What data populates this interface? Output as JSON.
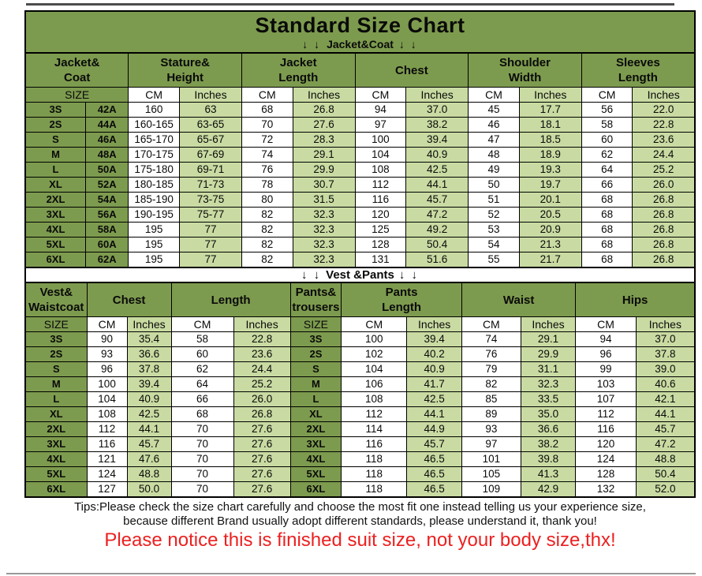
{
  "title": "Standard Size Chart",
  "arrows": "↓ ↓",
  "sections": {
    "jacket": "Jacket&Coat",
    "vest": "Vest &Pants"
  },
  "colors": {
    "band_green": "#7d9b4e",
    "pale_green": "#c9dba2",
    "notice_red": "#ec2020"
  },
  "footer": {
    "tip_line1": "Tips:Please check the size chart carefully and choose the most fit one instead telling us your experience size,",
    "tip_line2": "because different Brand usually adopt different standards, please understand it, thank you!",
    "notice": "Please notice this is finished suit size, not your body size,thx!"
  },
  "chart_data": [
    {
      "type": "table",
      "name": "Jacket&Coat",
      "size_header": "SIZE",
      "unit_headers": [
        "CM",
        "Inches"
      ],
      "column_groups": [
        {
          "label": "Jacket&\nCoat",
          "span": 2,
          "size_group": true
        },
        {
          "label": "Stature&\nHeight",
          "span": 2
        },
        {
          "label": "Jacket\nLength",
          "span": 2
        },
        {
          "label": "Chest",
          "span": 2
        },
        {
          "label": "Shoulder\nWidth",
          "span": 2
        },
        {
          "label": "Sleeves\nLength",
          "span": 2
        }
      ],
      "col_classes": [
        "size",
        "size",
        "cm",
        "in",
        "cm",
        "in",
        "cm",
        "in",
        "cm",
        "in",
        "cm",
        "in"
      ],
      "rows": [
        [
          "3S",
          "42A",
          "160",
          "63",
          "68",
          "26.8",
          "94",
          "37.0",
          "45",
          "17.7",
          "56",
          "22.0"
        ],
        [
          "2S",
          "44A",
          "160-165",
          "63-65",
          "70",
          "27.6",
          "97",
          "38.2",
          "46",
          "18.1",
          "58",
          "22.8"
        ],
        [
          "S",
          "46A",
          "165-170",
          "65-67",
          "72",
          "28.3",
          "100",
          "39.4",
          "47",
          "18.5",
          "60",
          "23.6"
        ],
        [
          "M",
          "48A",
          "170-175",
          "67-69",
          "74",
          "29.1",
          "104",
          "40.9",
          "48",
          "18.9",
          "62",
          "24.4"
        ],
        [
          "L",
          "50A",
          "175-180",
          "69-71",
          "76",
          "29.9",
          "108",
          "42.5",
          "49",
          "19.3",
          "64",
          "25.2"
        ],
        [
          "XL",
          "52A",
          "180-185",
          "71-73",
          "78",
          "30.7",
          "112",
          "44.1",
          "50",
          "19.7",
          "66",
          "26.0"
        ],
        [
          "2XL",
          "54A",
          "185-190",
          "73-75",
          "80",
          "31.5",
          "116",
          "45.7",
          "51",
          "20.1",
          "68",
          "26.8"
        ],
        [
          "3XL",
          "56A",
          "190-195",
          "75-77",
          "82",
          "32.3",
          "120",
          "47.2",
          "52",
          "20.5",
          "68",
          "26.8"
        ],
        [
          "4XL",
          "58A",
          "195",
          "77",
          "82",
          "32.3",
          "125",
          "49.2",
          "53",
          "20.9",
          "68",
          "26.8"
        ],
        [
          "5XL",
          "60A",
          "195",
          "77",
          "82",
          "32.3",
          "128",
          "50.4",
          "54",
          "21.3",
          "68",
          "26.8"
        ],
        [
          "6XL",
          "62A",
          "195",
          "77",
          "82",
          "32.3",
          "131",
          "51.6",
          "55",
          "21.7",
          "68",
          "26.8"
        ]
      ]
    },
    {
      "type": "table",
      "name": "Vest &Pants",
      "size_header": "SIZE",
      "unit_headers": [
        "CM",
        "Inches"
      ],
      "column_groups": [
        {
          "label": "Vest&\nWaistcoat",
          "span": 1,
          "size_group": true
        },
        {
          "label": "Chest",
          "span": 2
        },
        {
          "label": "Length",
          "span": 2
        },
        {
          "label": "Pants&\ntrousers",
          "span": 1,
          "size_group": true
        },
        {
          "label": "Pants\nLength",
          "span": 2
        },
        {
          "label": "Waist",
          "span": 2
        },
        {
          "label": "Hips",
          "span": 2
        }
      ],
      "col_classes": [
        "size",
        "cm",
        "in",
        "cm",
        "in",
        "size",
        "cm",
        "in",
        "cm",
        "in",
        "cm",
        "in"
      ],
      "rows": [
        [
          "3S",
          "90",
          "35.4",
          "58",
          "22.8",
          "3S",
          "100",
          "39.4",
          "74",
          "29.1",
          "94",
          "37.0"
        ],
        [
          "2S",
          "93",
          "36.6",
          "60",
          "23.6",
          "2S",
          "102",
          "40.2",
          "76",
          "29.9",
          "96",
          "37.8"
        ],
        [
          "S",
          "96",
          "37.8",
          "62",
          "24.4",
          "S",
          "104",
          "40.9",
          "79",
          "31.1",
          "99",
          "39.0"
        ],
        [
          "M",
          "100",
          "39.4",
          "64",
          "25.2",
          "M",
          "106",
          "41.7",
          "82",
          "32.3",
          "103",
          "40.6"
        ],
        [
          "L",
          "104",
          "40.9",
          "66",
          "26.0",
          "L",
          "108",
          "42.5",
          "85",
          "33.5",
          "107",
          "42.1"
        ],
        [
          "XL",
          "108",
          "42.5",
          "68",
          "26.8",
          "XL",
          "112",
          "44.1",
          "89",
          "35.0",
          "112",
          "44.1"
        ],
        [
          "2XL",
          "112",
          "44.1",
          "70",
          "27.6",
          "2XL",
          "114",
          "44.9",
          "93",
          "36.6",
          "116",
          "45.7"
        ],
        [
          "3XL",
          "116",
          "45.7",
          "70",
          "27.6",
          "3XL",
          "116",
          "45.7",
          "97",
          "38.2",
          "120",
          "47.2"
        ],
        [
          "4XL",
          "121",
          "47.6",
          "70",
          "27.6",
          "4XL",
          "118",
          "46.5",
          "101",
          "39.8",
          "124",
          "48.8"
        ],
        [
          "5XL",
          "124",
          "48.8",
          "70",
          "27.6",
          "5XL",
          "118",
          "46.5",
          "105",
          "41.3",
          "128",
          "50.4"
        ],
        [
          "6XL",
          "127",
          "50.0",
          "70",
          "27.6",
          "6XL",
          "118",
          "46.5",
          "109",
          "42.9",
          "132",
          "52.0"
        ]
      ]
    }
  ]
}
